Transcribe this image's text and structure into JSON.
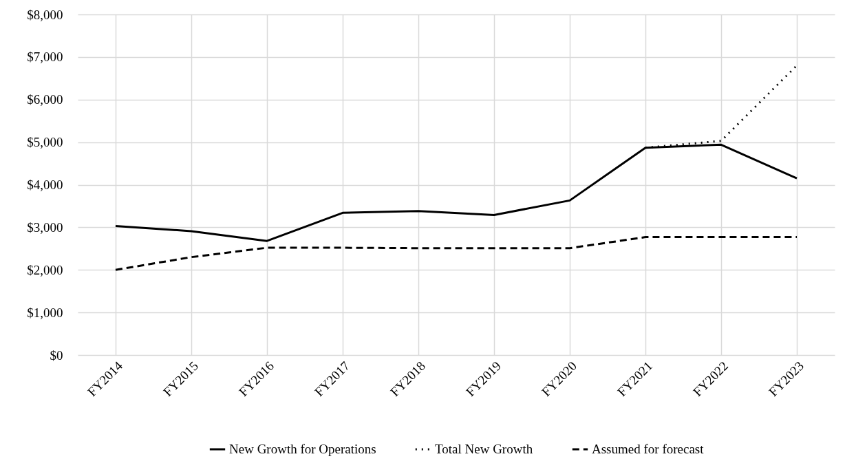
{
  "chart_data": {
    "type": "line",
    "categories": [
      "FY2014",
      "FY2015",
      "FY2016",
      "FY2017",
      "FY2018",
      "FY2019",
      "FY2020",
      "FY2021",
      "FY2022",
      "FY2023"
    ],
    "series": [
      {
        "name": "New Growth for Operations",
        "color": "#000000",
        "line_style": "solid",
        "values": [
          3030,
          2910,
          2680,
          3340,
          3380,
          3290,
          3630,
          4870,
          4940,
          4150
        ]
      },
      {
        "name": "Total New Growth",
        "color": "#000000",
        "line_style": "dotted",
        "values": [
          null,
          null,
          null,
          null,
          null,
          null,
          null,
          4870,
          5030,
          6800
        ]
      },
      {
        "name": "Assumed for forecast",
        "color": "#000000",
        "line_style": "dashed",
        "values": [
          2000,
          2300,
          2520,
          2520,
          2510,
          2510,
          2510,
          2770,
          2770,
          2770
        ]
      }
    ],
    "ylim": [
      0,
      8000
    ],
    "yticks": [
      {
        "value": 0,
        "label": "$0"
      },
      {
        "value": 1000,
        "label": "$1,000"
      },
      {
        "value": 2000,
        "label": "$2,000"
      },
      {
        "value": 3000,
        "label": "$3,000"
      },
      {
        "value": 4000,
        "label": "$4,000"
      },
      {
        "value": 5000,
        "label": "$5,000"
      },
      {
        "value": 6000,
        "label": "$6,000"
      },
      {
        "value": 7000,
        "label": "$7,000"
      },
      {
        "value": 8000,
        "label": "$8,000"
      }
    ],
    "grid": true,
    "legend": "bottom",
    "marker": "none"
  }
}
